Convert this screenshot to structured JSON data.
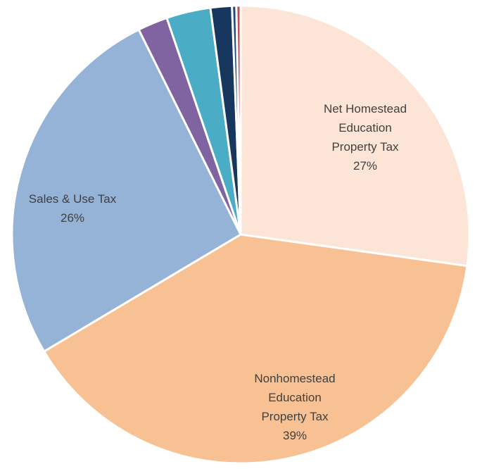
{
  "chart_data": {
    "type": "pie",
    "series": [
      {
        "values": [
          {
            "label": "Net Homestead Education Property Tax",
            "label_lines": [
              "Net Homestead",
              "Education",
              "Property Tax"
            ],
            "value": 27,
            "value_label": "27%",
            "color": "#FCE5D6"
          },
          {
            "label": "Nonhomestead Education Property Tax",
            "label_lines": [
              "Nonhomestead",
              "Education",
              "Property Tax"
            ],
            "value": 39,
            "value_label": "39%",
            "color": "#F8C193"
          },
          {
            "label": "Sales & Use Tax",
            "label_lines": [
              "Sales & Use Tax"
            ],
            "value": 26,
            "value_label": "26%",
            "color": "#95B2D7"
          },
          {
            "label": "",
            "label_lines": [],
            "value": 2.1,
            "value_label": "",
            "color": "#8064A2"
          },
          {
            "label": "",
            "label_lines": [],
            "value": 3.1,
            "value_label": "",
            "color": "#4BACC6"
          },
          {
            "label": "",
            "label_lines": [],
            "value": 1.5,
            "value_label": "",
            "color": "#17375E"
          },
          {
            "label": "",
            "label_lines": [],
            "value": 0.3,
            "value_label": "",
            "color": "#1F497D"
          },
          {
            "label": "",
            "label_lines": [],
            "value": 0.3,
            "value_label": "",
            "color": "#C0504D"
          }
        ]
      }
    ],
    "start_angle_deg": 0,
    "direction": "clockwise",
    "title": "",
    "legend": "none"
  }
}
